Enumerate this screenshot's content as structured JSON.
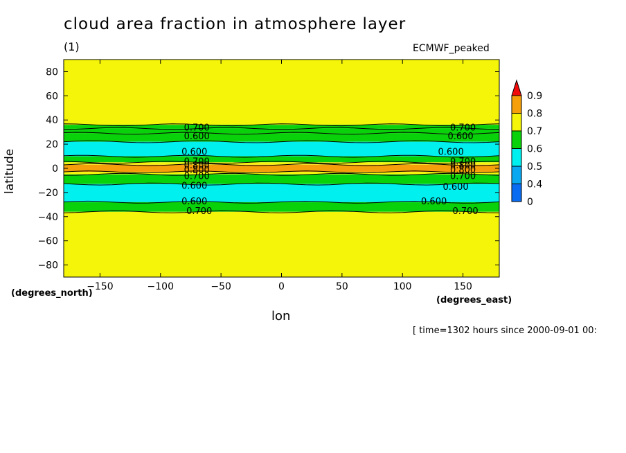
{
  "chart_data": {
    "type": "contour",
    "title": "cloud area fraction in atmosphere layer",
    "subtitle": "(1)",
    "model_label": "ECMWF_peaked",
    "xlabel": "lon",
    "ylabel": "latitude",
    "x_units": "(degrees_east)",
    "y_units": "(degrees_north)",
    "xlim": [
      -180,
      180
    ],
    "ylim": [
      -90,
      90
    ],
    "x_ticks": [
      -150,
      -100,
      -50,
      0,
      50,
      100,
      150
    ],
    "y_ticks": [
      80,
      60,
      40,
      20,
      0,
      -20,
      -40,
      -60,
      -80
    ],
    "timestamp": "[ time=1302 hours since 2000-09-01 00:",
    "colorbar": {
      "levels": [
        0,
        0.4,
        0.5,
        0.6,
        0.7,
        0.8,
        0.9
      ],
      "labels": [
        "0",
        "0.4",
        "0.5",
        "0.6",
        "0.7",
        "0.8",
        "0.9"
      ],
      "colors": [
        "#0a6cf0",
        "#0aa8f0",
        "#00f0f0",
        "#0ad20a",
        "#f5f50a",
        "#f5a00a",
        "#f00a0a"
      ]
    },
    "bands": [
      {
        "lat_top": 90,
        "lat_bottom": 36,
        "class": "0.7-0.8"
      },
      {
        "lat_top": 36,
        "lat_bottom": 33,
        "class": "0.6-0.7"
      },
      {
        "lat_top": 33,
        "lat_bottom": 29,
        "class": "0.6-0.7"
      },
      {
        "lat_top": 29,
        "lat_bottom": 22,
        "class": "0.6-0.7"
      },
      {
        "lat_top": 22,
        "lat_bottom": 10,
        "class": "0.5-0.6"
      },
      {
        "lat_top": 10,
        "lat_bottom": 5,
        "class": "0.6-0.7"
      },
      {
        "lat_top": 5,
        "lat_bottom": 3,
        "class": "0.7-0.8"
      },
      {
        "lat_top": 3,
        "lat_bottom": -3,
        "class": "0.8-0.9"
      },
      {
        "lat_top": -3,
        "lat_bottom": -5,
        "class": "0.7-0.8"
      },
      {
        "lat_top": -5,
        "lat_bottom": -13,
        "class": "0.6-0.7"
      },
      {
        "lat_top": -13,
        "lat_bottom": -28,
        "class": "0.5-0.6"
      },
      {
        "lat_top": -28,
        "lat_bottom": -36,
        "class": "0.6-0.7"
      },
      {
        "lat_top": -36,
        "lat_bottom": -90,
        "class": "0.7-0.8"
      }
    ],
    "contour_labels": [
      {
        "text": "0.700",
        "lon": -70,
        "lat": 34
      },
      {
        "text": "0.600",
        "lon": -70,
        "lat": 27
      },
      {
        "text": "0.600",
        "lon": -72,
        "lat": 14
      },
      {
        "text": "0.700",
        "lon": -70,
        "lat": 6
      },
      {
        "text": "0.800",
        "lon": -70,
        "lat": 3
      },
      {
        "text": "0.800",
        "lon": -70,
        "lat": -1
      },
      {
        "text": "0.700",
        "lon": -70,
        "lat": -6
      },
      {
        "text": "0.600",
        "lon": -72,
        "lat": -14
      },
      {
        "text": "0.600",
        "lon": -72,
        "lat": -27
      },
      {
        "text": "0.700",
        "lon": -68,
        "lat": -35
      },
      {
        "text": "0.700",
        "lon": 150,
        "lat": 34
      },
      {
        "text": "0.600",
        "lon": 148,
        "lat": 27
      },
      {
        "text": "0.600",
        "lon": 140,
        "lat": 14
      },
      {
        "text": "0.700",
        "lon": 150,
        "lat": 6
      },
      {
        "text": "0.800",
        "lon": 150,
        "lat": 3
      },
      {
        "text": "0.800",
        "lon": 150,
        "lat": -1
      },
      {
        "text": "0.700",
        "lon": 150,
        "lat": -6
      },
      {
        "text": "0.600",
        "lon": 144,
        "lat": -15
      },
      {
        "text": "0.600",
        "lon": 126,
        "lat": -27
      },
      {
        "text": "0.700",
        "lon": 152,
        "lat": -35
      }
    ]
  }
}
